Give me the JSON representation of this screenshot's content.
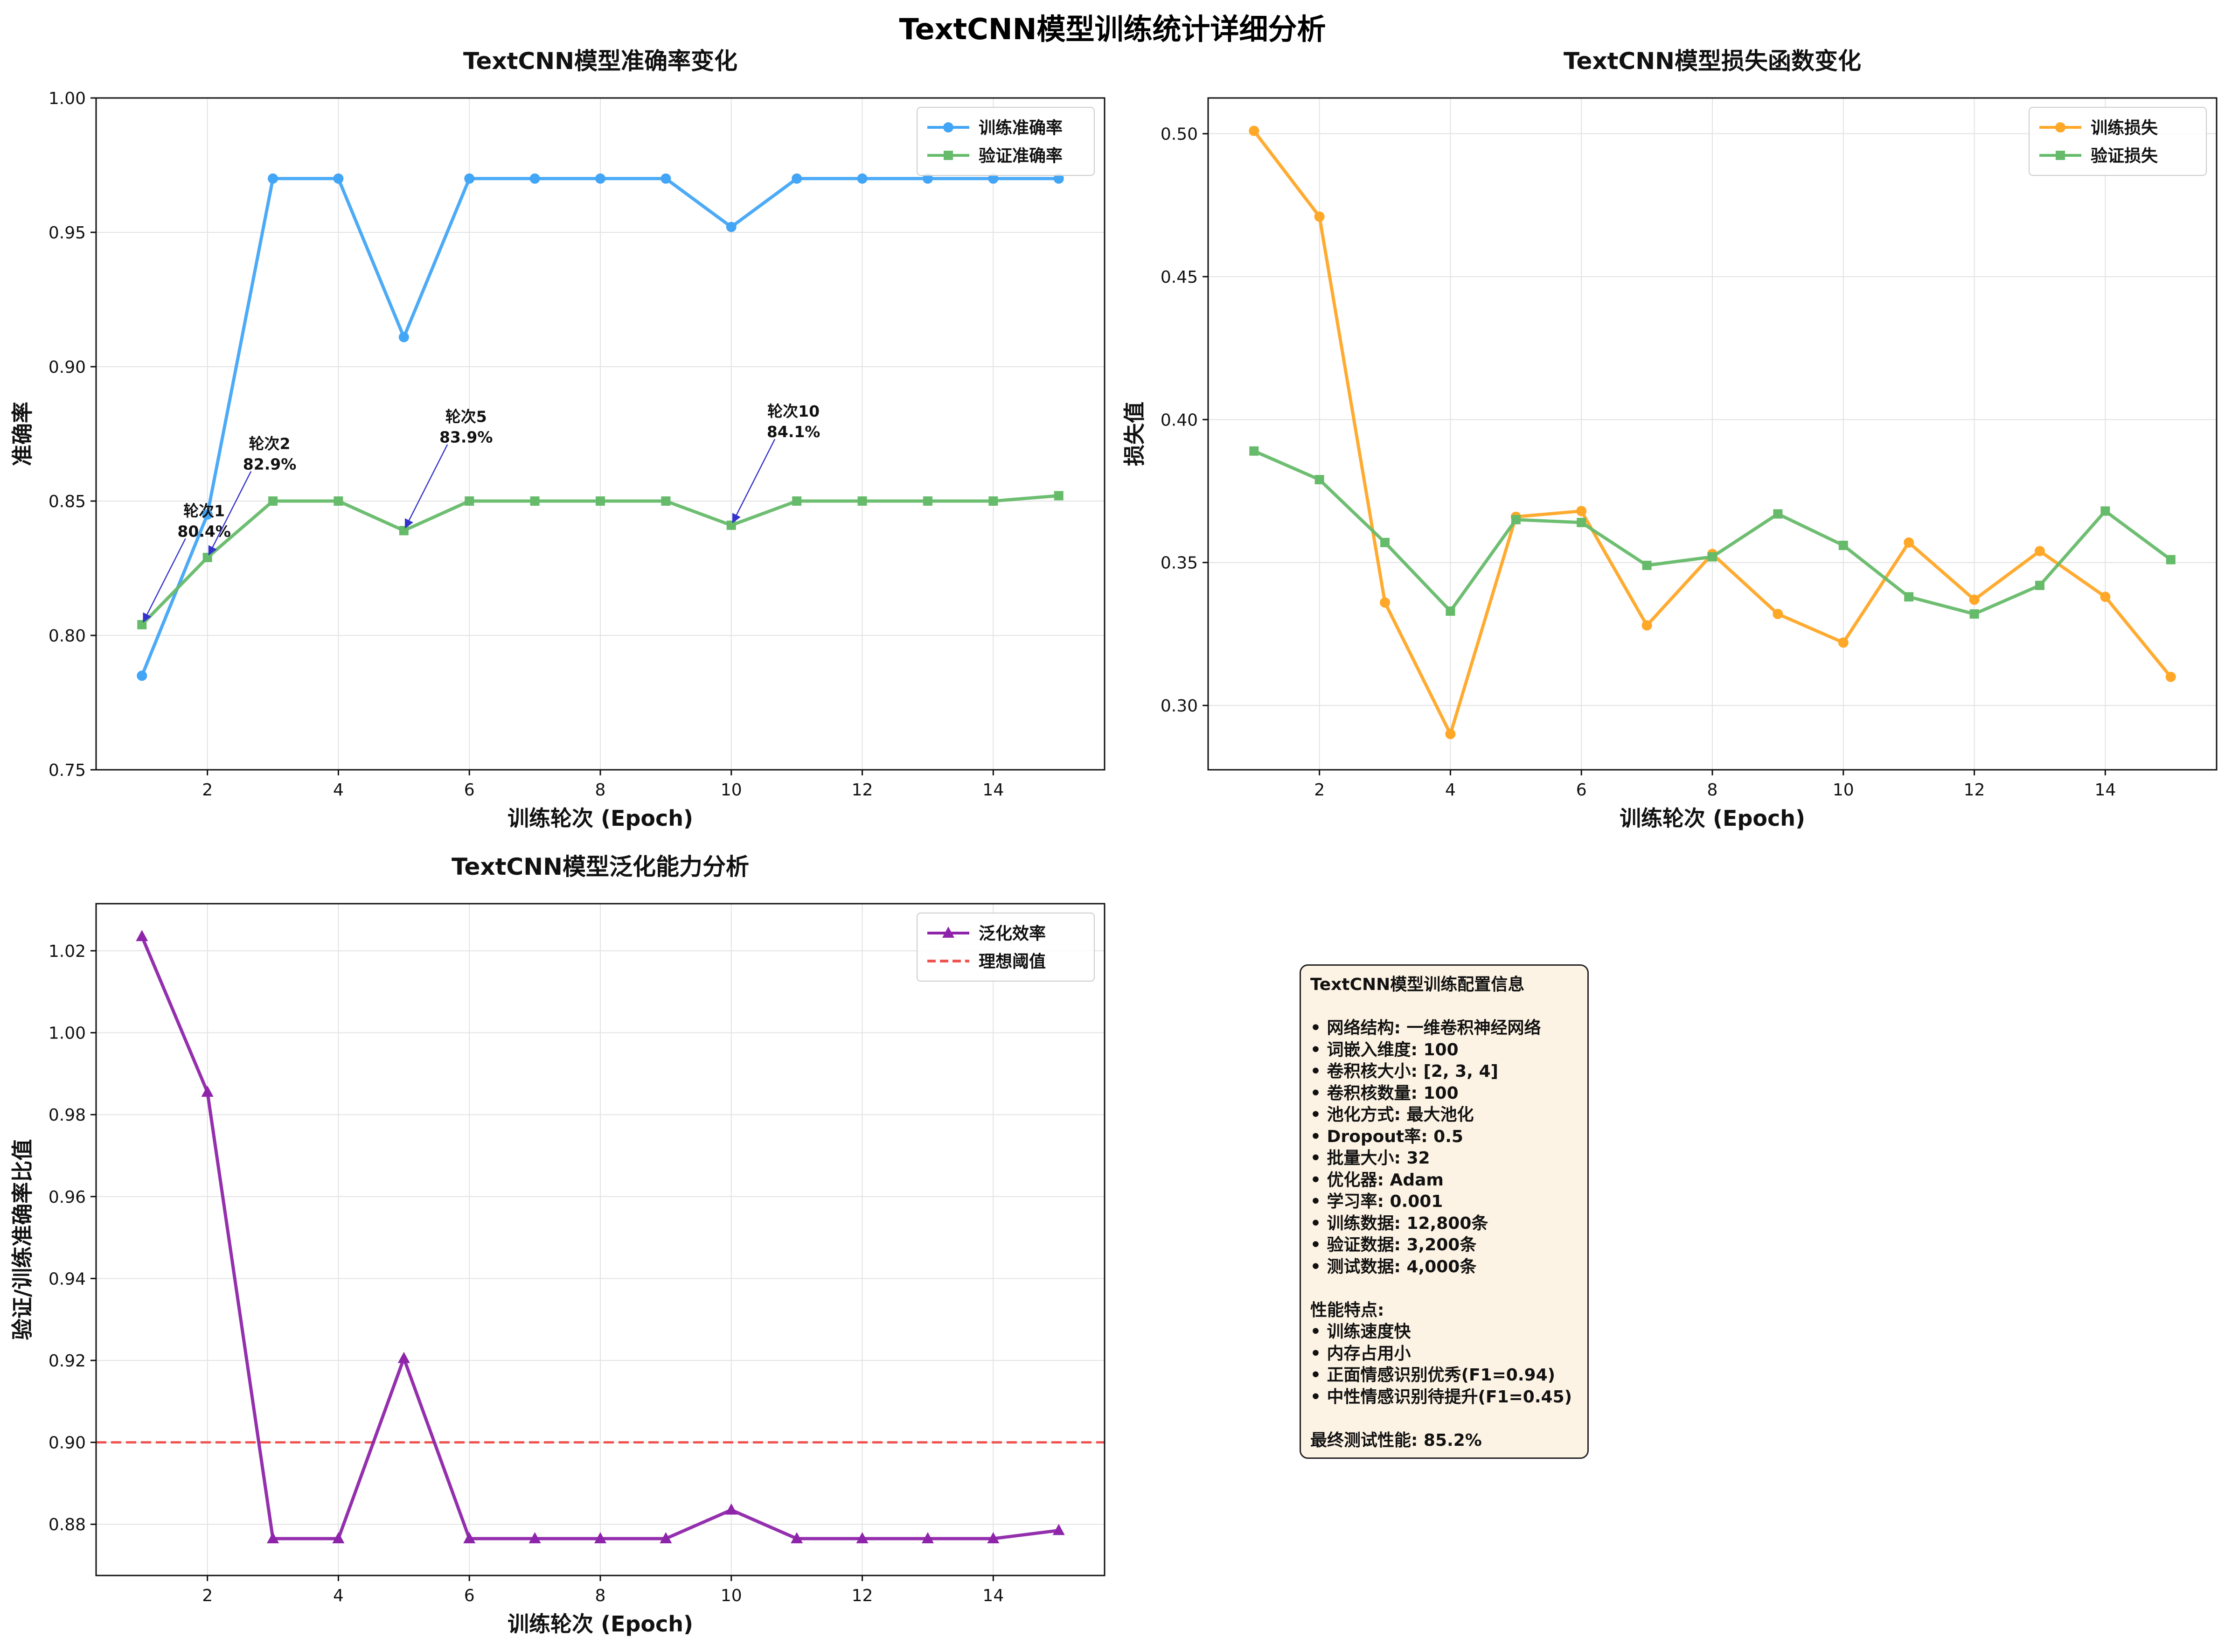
{
  "figure": {
    "suptitle": "TextCNN模型训练统计详细分析"
  },
  "chart_data": [
    {
      "type": "line",
      "title": "TextCNN模型准确率变化",
      "xlabel": "训练轮次 (Epoch)",
      "ylabel": "准确率",
      "xlim": [
        0.3,
        15.7
      ],
      "ylim": [
        0.75,
        1.0
      ],
      "xticks": [
        2,
        4,
        6,
        8,
        10,
        12,
        14
      ],
      "yticks": [
        0.75,
        0.8,
        0.85,
        0.9,
        0.95,
        1.0
      ],
      "ytick_labels": [
        "0.75",
        "0.80",
        "0.85",
        "0.90",
        "0.95",
        "1.00"
      ],
      "grid": true,
      "legend_position": "top-right",
      "x": [
        1,
        2,
        3,
        4,
        5,
        6,
        7,
        8,
        9,
        10,
        11,
        12,
        13,
        14,
        15
      ],
      "series": [
        {
          "name": "训练准确率",
          "color": "#42a5f5",
          "marker": "circle",
          "values": [
            0.785,
            0.845,
            0.97,
            0.97,
            0.911,
            0.97,
            0.97,
            0.97,
            0.97,
            0.952,
            0.97,
            0.97,
            0.97,
            0.97,
            0.97
          ]
        },
        {
          "name": "验证准确率",
          "color": "#66bb6a",
          "marker": "square",
          "values": [
            0.804,
            0.829,
            0.85,
            0.85,
            0.839,
            0.85,
            0.85,
            0.85,
            0.85,
            0.841,
            0.85,
            0.85,
            0.85,
            0.85,
            0.852
          ]
        }
      ],
      "annotations": [
        {
          "x": 1,
          "y": 0.804,
          "line1": "轮次1",
          "line2": "80.4%",
          "text_x": 1.95,
          "text_y": 0.843
        },
        {
          "x": 2,
          "y": 0.829,
          "line1": "轮次2",
          "line2": "82.9%",
          "text_x": 2.95,
          "text_y": 0.868
        },
        {
          "x": 5,
          "y": 0.839,
          "line1": "轮次5",
          "line2": "83.9%",
          "text_x": 5.95,
          "text_y": 0.878
        },
        {
          "x": 10,
          "y": 0.841,
          "line1": "轮次10",
          "line2": "84.1%",
          "text_x": 10.95,
          "text_y": 0.88
        }
      ],
      "annotation_color": "#3333cc"
    },
    {
      "type": "line",
      "title": "TextCNN模型损失函数变化",
      "xlabel": "训练轮次 (Epoch)",
      "ylabel": "损失值",
      "xlim": [
        0.3,
        15.7
      ],
      "ylim": [
        0.2775,
        0.5125
      ],
      "xticks": [
        2,
        4,
        6,
        8,
        10,
        12,
        14
      ],
      "yticks": [
        0.3,
        0.35,
        0.4,
        0.45,
        0.5
      ],
      "ytick_labels": [
        "0.30",
        "0.35",
        "0.40",
        "0.45",
        "0.50"
      ],
      "grid": true,
      "legend_position": "top-right",
      "x": [
        1,
        2,
        3,
        4,
        5,
        6,
        7,
        8,
        9,
        10,
        11,
        12,
        13,
        14,
        15
      ],
      "series": [
        {
          "name": "训练损失",
          "color": "#ffa726",
          "marker": "circle",
          "values": [
            0.501,
            0.471,
            0.336,
            0.29,
            0.366,
            0.368,
            0.328,
            0.353,
            0.332,
            0.322,
            0.357,
            0.337,
            0.354,
            0.338,
            0.31
          ]
        },
        {
          "name": "验证损失",
          "color": "#66bb6a",
          "marker": "square",
          "values": [
            0.389,
            0.379,
            0.357,
            0.333,
            0.365,
            0.364,
            0.349,
            0.352,
            0.367,
            0.356,
            0.338,
            0.332,
            0.342,
            0.368,
            0.351
          ]
        }
      ]
    },
    {
      "type": "line",
      "title": "TextCNN模型泛化能力分析",
      "xlabel": "训练轮次 (Epoch)",
      "ylabel": "验证/训练准确率比值",
      "xlim": [
        0.3,
        15.7
      ],
      "ylim": [
        0.8675,
        1.0315
      ],
      "xticks": [
        2,
        4,
        6,
        8,
        10,
        12,
        14
      ],
      "yticks": [
        0.88,
        0.9,
        0.92,
        0.94,
        0.96,
        0.98,
        1.0,
        1.02
      ],
      "ytick_labels": [
        "0.88",
        "0.90",
        "0.92",
        "0.94",
        "0.96",
        "0.98",
        "1.00",
        "1.02"
      ],
      "grid": true,
      "legend_position": "top-right",
      "x": [
        1,
        2,
        3,
        4,
        5,
        6,
        7,
        8,
        9,
        10,
        11,
        12,
        13,
        14,
        15
      ],
      "series": [
        {
          "name": "泛化效率",
          "color": "#8e24aa",
          "marker": "triangle",
          "values": [
            1.0235,
            0.9855,
            0.8765,
            0.8765,
            0.9205,
            0.8765,
            0.8765,
            0.8765,
            0.8765,
            0.8835,
            0.8765,
            0.8765,
            0.8765,
            0.8765,
            0.8785
          ]
        }
      ],
      "reference_line": {
        "name": "理想阈值",
        "value": 0.9,
        "color": "#ef5350",
        "style": "dashed"
      }
    }
  ],
  "info_box": {
    "lines": [
      "TextCNN模型训练配置信息",
      "",
      "• 网络结构: 一维卷积神经网络",
      "• 词嵌入维度: 100",
      "• 卷积核大小: [2, 3, 4]",
      "• 卷积核数量: 100",
      "• 池化方式: 最大池化",
      "• Dropout率: 0.5",
      "• 批量大小: 32",
      "• 优化器: Adam",
      "• 学习率: 0.001",
      "• 训练数据: 12,800条",
      "• 验证数据: 3,200条",
      "• 测试数据: 4,000条",
      "",
      "性能特点:",
      "• 训练速度快",
      "• 内存占用小",
      "• 正面情感识别优秀(F1=0.94)",
      "• 中性情感识别待提升(F1=0.45)",
      "",
      "最终测试性能: 85.2%"
    ]
  }
}
